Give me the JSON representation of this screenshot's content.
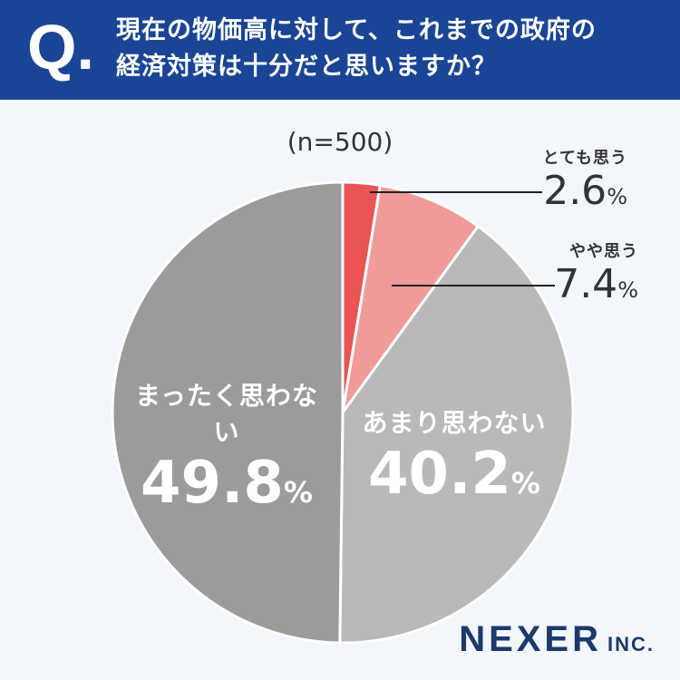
{
  "header": {
    "q_mark": "Q.",
    "question": "現在の物価高に対して、これまでの政府の\n経済対策は十分だと思いますか？"
  },
  "sample": "(n=500)",
  "chart_data": {
    "type": "pie",
    "title": "",
    "categories": [
      "とても思う",
      "やや思う",
      "あまり思わない",
      "まったく思わない"
    ],
    "values": [
      2.6,
      7.4,
      40.2,
      49.8
    ],
    "value_labels": [
      "2.6",
      "7.4",
      "40.2",
      "49.8"
    ],
    "unit": "%",
    "colors": [
      "#ea5455",
      "#f09b9a",
      "#b9b9b9",
      "#9b9b9b"
    ],
    "start": "12 o'clock",
    "direction": "clockwise"
  },
  "brand": {
    "main": "NEXER",
    "sub": "INC."
  }
}
